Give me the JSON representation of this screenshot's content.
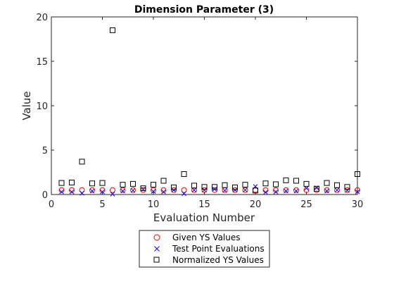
{
  "chart_data": {
    "type": "scatter",
    "title": "Dimension Parameter (3)",
    "xlabel": "Evaluation Number",
    "ylabel": "Value",
    "xlim": [
      0,
      30
    ],
    "ylim": [
      0,
      20
    ],
    "xticks": [
      0,
      5,
      10,
      15,
      20,
      25,
      30
    ],
    "yticks": [
      0,
      5,
      10,
      15,
      20
    ],
    "grid": false,
    "legend_position": "bottom-center-outside",
    "x": [
      1,
      2,
      3,
      4,
      5,
      6,
      7,
      8,
      9,
      10,
      11,
      12,
      13,
      14,
      15,
      16,
      17,
      18,
      19,
      20,
      21,
      22,
      23,
      24,
      25,
      26,
      27,
      28,
      29,
      30
    ],
    "series": [
      {
        "name": "Given YS Values",
        "marker": "circle",
        "color": "#ff0000",
        "values": [
          0.5,
          0.5,
          0.5,
          0.5,
          0.5,
          0.5,
          0.5,
          0.5,
          0.5,
          0.5,
          0.5,
          0.5,
          0.5,
          0.5,
          0.5,
          0.5,
          0.5,
          0.5,
          0.5,
          0.5,
          0.5,
          0.5,
          0.5,
          0.5,
          0.5,
          0.5,
          0.5,
          0.5,
          0.5,
          0.5
        ]
      },
      {
        "name": "Test Point Evaluations",
        "marker": "x",
        "color": "#0000ff",
        "values": [
          0.3,
          0.3,
          0.15,
          0.4,
          0.3,
          0.05,
          0.4,
          0.45,
          0.6,
          0.35,
          0.3,
          0.5,
          0.1,
          0.5,
          0.5,
          0.6,
          0.45,
          0.5,
          0.5,
          0.9,
          0.25,
          0.3,
          0.4,
          0.4,
          0.7,
          0.75,
          0.4,
          0.5,
          0.45,
          0.3
        ]
      },
      {
        "name": "Normalized YS Values",
        "marker": "square",
        "color": "#000000",
        "values": [
          1.3,
          1.35,
          3.7,
          1.25,
          1.3,
          18.5,
          1.1,
          1.2,
          0.7,
          1.1,
          1.55,
          0.8,
          2.3,
          1.0,
          0.85,
          0.85,
          1.05,
          0.8,
          1.1,
          0.45,
          1.25,
          1.15,
          1.6,
          1.55,
          1.2,
          0.65,
          1.3,
          1.05,
          0.85,
          2.3
        ]
      }
    ]
  }
}
